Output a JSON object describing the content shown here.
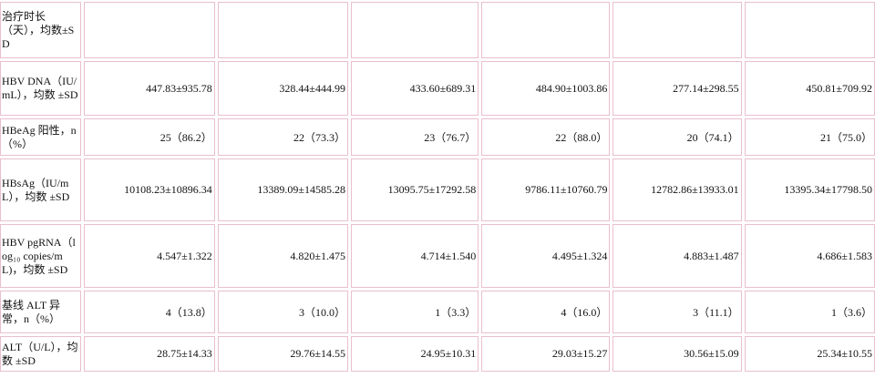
{
  "table": {
    "rows": [
      {
        "label": "治疗时长（天），均数±SD",
        "values": []
      },
      {
        "label": "HBV DNA（IU/mL），均数 ±SD",
        "values": [
          "447.83±935.78",
          "328.44±444.99",
          "433.60±689.31",
          "484.90±1003.86",
          "277.14±298.55",
          "450.81±709.92"
        ]
      },
      {
        "label": "HBeAg 阳性，n（%）",
        "values": [
          "25（86.2）",
          "22（73.3）",
          "23（76.7）",
          "22（88.0）",
          "20（74.1）",
          "21（75.0）"
        ]
      },
      {
        "label": "HBsAg（IU/mL），均数 ±SD",
        "values": [
          "10108.23±10896.34",
          "13389.09±14585.28",
          "13095.75±17292.58",
          "9786.11±10760.79",
          "12782.86±13933.01",
          "13395.34±17798.50"
        ]
      },
      {
        "label": "HBV pgRNA（log₁₀ copies/mL)，均数 ±SD",
        "values": [
          "4.547±1.322",
          "4.820±1.475",
          "4.714±1.540",
          "4.495±1.324",
          "4.883±1.487",
          "4.686±1.583"
        ]
      },
      {
        "label": "基线 ALT 异常，n（%）",
        "values": [
          "4（13.8）",
          "3（10.0）",
          "1（3.3）",
          "4（16.0）",
          "3（11.1）",
          "1（3.6）"
        ]
      },
      {
        "label": "ALT（U/L），均数 ±SD",
        "values": [
          "28.75±14.33",
          "29.76±14.55",
          "24.95±10.31",
          "29.03±15.27",
          "30.56±15.09",
          "25.34±10.55"
        ]
      }
    ]
  }
}
